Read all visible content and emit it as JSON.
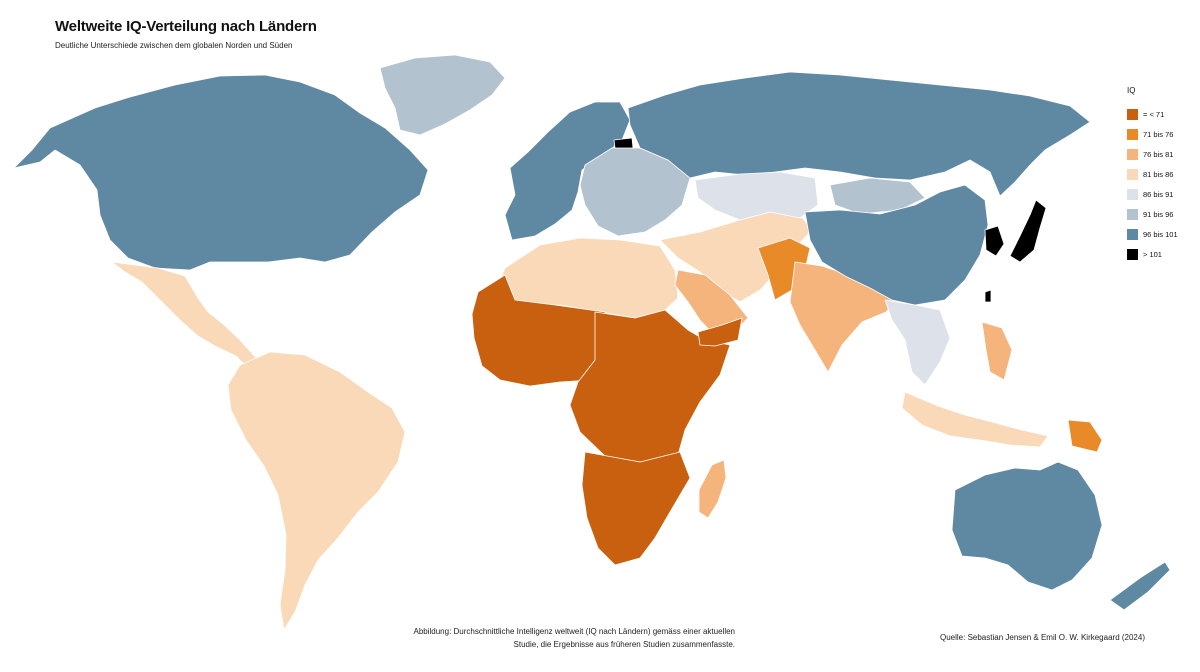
{
  "title": "Weltweite IQ-Verteilung nach Ländern",
  "subtitle": "Deutliche Unterschiede zwischen dem globalen Norden und Süden",
  "legend": {
    "title": "IQ",
    "items": [
      {
        "label": "= < 71",
        "color": "#c8600f"
      },
      {
        "label": "71 bis 76",
        "color": "#e88a28"
      },
      {
        "label": "76 bis 81",
        "color": "#f4b47c"
      },
      {
        "label": "81 bis 86",
        "color": "#fad9b8"
      },
      {
        "label": "86 bis 91",
        "color": "#dde2ea"
      },
      {
        "label": "91 bis 96",
        "color": "#b3c2cf"
      },
      {
        "label": "96 bis 101",
        "color": "#5f88a3"
      },
      {
        "label": "> 101",
        "color": "#000000"
      }
    ]
  },
  "caption": "Abbildung: Durchschnittliche Intelligenz weltweit (IQ nach Ländern) gemäss einer aktuellen Studie, die Ergebnisse aus früheren Studien zusammenfasste.",
  "source": "Quelle: Sebastian Jensen & Emil O. W. Kirkegaard (2024)",
  "regions": [
    {
      "name": "north-america",
      "iq_class": "96 bis 101",
      "color": "#5f88a3"
    },
    {
      "name": "greenland",
      "iq_class": "91 bis 96",
      "color": "#b3c2cf"
    },
    {
      "name": "mexico-central-america",
      "iq_class": "81 bis 86",
      "color": "#fad9b8"
    },
    {
      "name": "south-america",
      "iq_class": "81 bis 86",
      "color": "#fad9b8"
    },
    {
      "name": "western-europe",
      "iq_class": "96 bis 101",
      "color": "#5f88a3"
    },
    {
      "name": "eastern-europe",
      "iq_class": "91 bis 96",
      "color": "#b3c2cf"
    },
    {
      "name": "russia",
      "iq_class": "96 bis 101",
      "color": "#5f88a3"
    },
    {
      "name": "estonia",
      "iq_class": "> 101",
      "color": "#000000"
    },
    {
      "name": "north-africa",
      "iq_class": "81 bis 86",
      "color": "#fad9b8"
    },
    {
      "name": "west-africa",
      "iq_class": "= < 71",
      "color": "#c8600f"
    },
    {
      "name": "central-africa",
      "iq_class": "= < 71",
      "color": "#c8600f"
    },
    {
      "name": "southern-africa",
      "iq_class": "= < 71",
      "color": "#c8600f"
    },
    {
      "name": "madagascar",
      "iq_class": "76 bis 81",
      "color": "#f4b47c"
    },
    {
      "name": "middle-east",
      "iq_class": "81 bis 86",
      "color": "#fad9b8"
    },
    {
      "name": "arabia",
      "iq_class": "76 bis 81",
      "color": "#f4b47c"
    },
    {
      "name": "yemen",
      "iq_class": "= < 71",
      "color": "#c8600f"
    },
    {
      "name": "pakistan-afghanistan",
      "iq_class": "71 bis 76",
      "color": "#e88a28"
    },
    {
      "name": "india",
      "iq_class": "76 bis 81",
      "color": "#f4b47c"
    },
    {
      "name": "central-asia",
      "iq_class": "86 bis 91",
      "color": "#dde2ea"
    },
    {
      "name": "mongolia",
      "iq_class": "91 bis 96",
      "color": "#b3c2cf"
    },
    {
      "name": "china",
      "iq_class": "96 bis 101",
      "color": "#5f88a3"
    },
    {
      "name": "korea",
      "iq_class": "> 101",
      "color": "#000000"
    },
    {
      "name": "japan",
      "iq_class": "> 101",
      "color": "#000000"
    },
    {
      "name": "taiwan",
      "iq_class": "> 101",
      "color": "#000000"
    },
    {
      "name": "southeast-asia",
      "iq_class": "86 bis 91",
      "color": "#dde2ea"
    },
    {
      "name": "indonesia",
      "iq_class": "81 bis 86",
      "color": "#fad9b8"
    },
    {
      "name": "philippines",
      "iq_class": "76 bis 81",
      "color": "#f4b47c"
    },
    {
      "name": "papua-new-guinea",
      "iq_class": "71 bis 76",
      "color": "#e88a28"
    },
    {
      "name": "australia",
      "iq_class": "96 bis 101",
      "color": "#5f88a3"
    },
    {
      "name": "new-zealand",
      "iq_class": "96 bis 101",
      "color": "#5f88a3"
    }
  ]
}
